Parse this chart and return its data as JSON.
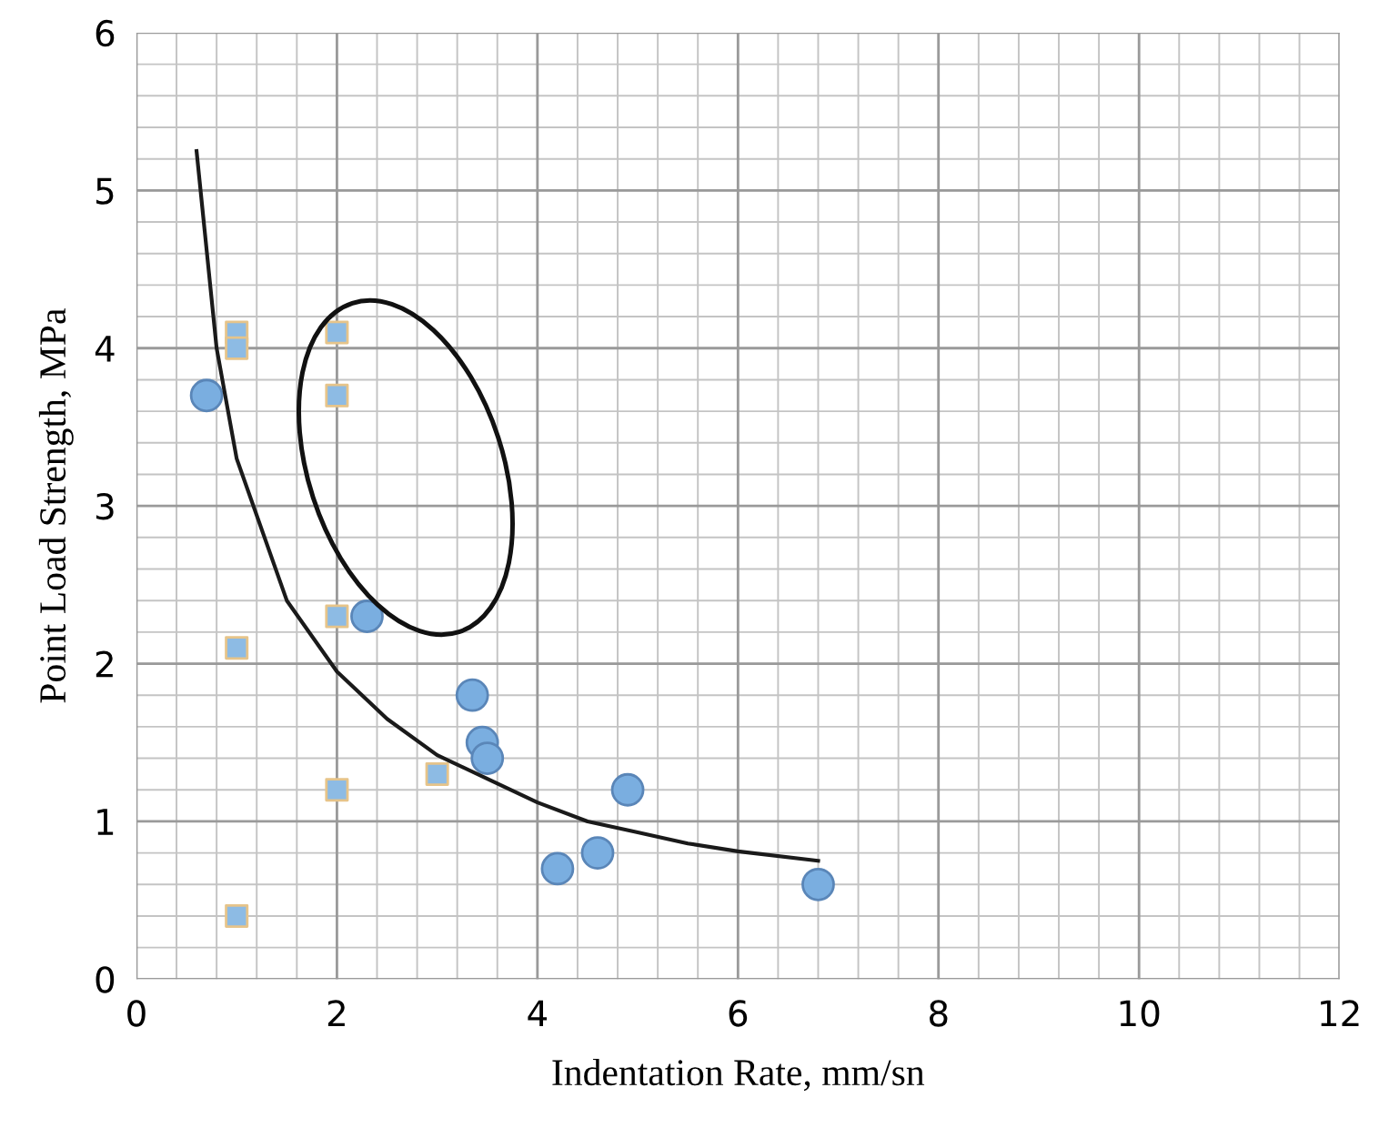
{
  "chart_data": {
    "type": "scatter",
    "xlabel": "Indentation Rate, mm/sn",
    "ylabel": "Point Load Strength, MPa",
    "xlim": [
      0,
      12
    ],
    "ylim": [
      0,
      6
    ],
    "xticks": [
      0,
      2,
      4,
      6,
      8,
      10,
      12
    ],
    "yticks": [
      0,
      1,
      2,
      3,
      4,
      5,
      6
    ],
    "grid": true,
    "legend": false,
    "series": [
      {
        "marker": "square",
        "color": "#8dbbe4",
        "x": [
          1,
          1,
          2,
          2,
          1,
          2,
          2,
          3,
          1
        ],
        "values": [
          4.1,
          4.0,
          4.1,
          3.7,
          2.1,
          2.3,
          1.2,
          1.3,
          0.4
        ]
      },
      {
        "marker": "circle",
        "color": "#7aaee0",
        "x": [
          0.7,
          2.3,
          3.35,
          3.45,
          3.5,
          4.9,
          4.2,
          4.6,
          6.8
        ],
        "values": [
          3.7,
          2.3,
          1.8,
          1.5,
          1.4,
          1.2,
          0.7,
          0.8,
          0.6
        ]
      },
      {
        "type": "line",
        "marker": "none",
        "line_style": "solid",
        "color": "#1a1a1a",
        "x": [
          0.6,
          0.8,
          1,
          1.5,
          2,
          2.5,
          3,
          3.5,
          4,
          4.5,
          5,
          5.5,
          6,
          6.8
        ],
        "values": [
          5.25,
          4.0,
          3.3,
          2.4,
          1.95,
          1.65,
          1.42,
          1.27,
          1.12,
          1.0,
          0.93,
          0.86,
          0.81,
          0.75
        ]
      }
    ]
  }
}
